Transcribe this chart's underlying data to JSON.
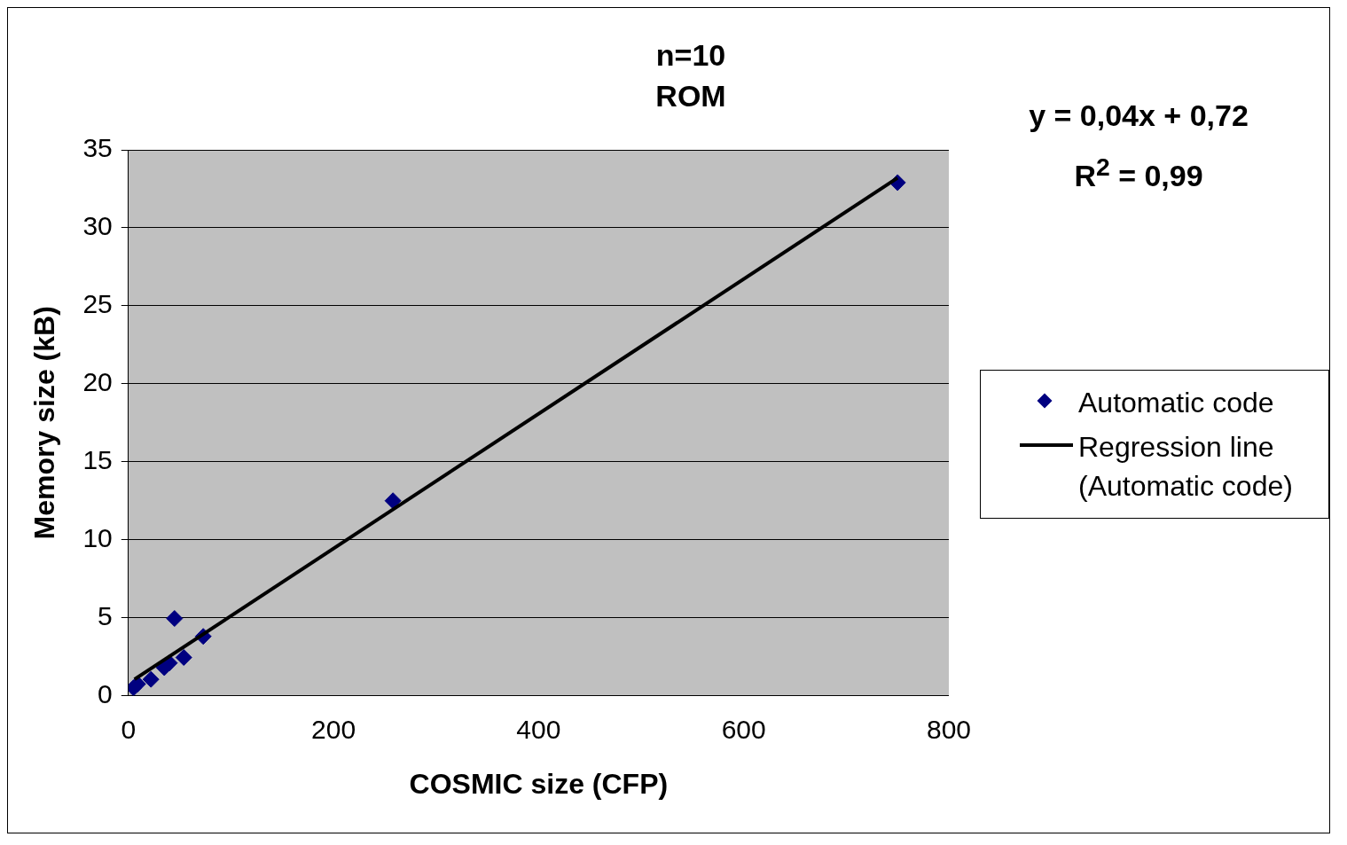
{
  "chart_data": {
    "type": "scatter",
    "title": "n=10",
    "subtitle": "ROM",
    "xlabel": "COSMIC size (CFP)",
    "ylabel": "Memory size (kB)",
    "xlim": [
      0,
      800
    ],
    "xticks": [
      0,
      200,
      400,
      600,
      800
    ],
    "ylim": [
      0,
      35
    ],
    "yticks": [
      0,
      5,
      10,
      15,
      20,
      25,
      30,
      35
    ],
    "grid": "y",
    "legend": "right",
    "marker": "diamond",
    "annotations": [
      "y = 0,04x + 0,72",
      "R$^{2}$ = 0,99"
    ],
    "series": [
      {
        "name": "Automatic code",
        "color": "#000080",
        "x": [
          5,
          9,
          22,
          35,
          40,
          54,
          45,
          73,
          258,
          750
        ],
        "values": [
          0.5,
          0.75,
          1.05,
          1.8,
          2.1,
          2.45,
          4.95,
          3.8,
          12.5,
          32.9
        ]
      },
      {
        "name": "Regression line (Automatic code)",
        "type": "line",
        "color": "#000000",
        "marker": "none",
        "x": [
          6,
          750
        ],
        "values": [
          1.05,
          33.2
        ]
      }
    ]
  }
}
